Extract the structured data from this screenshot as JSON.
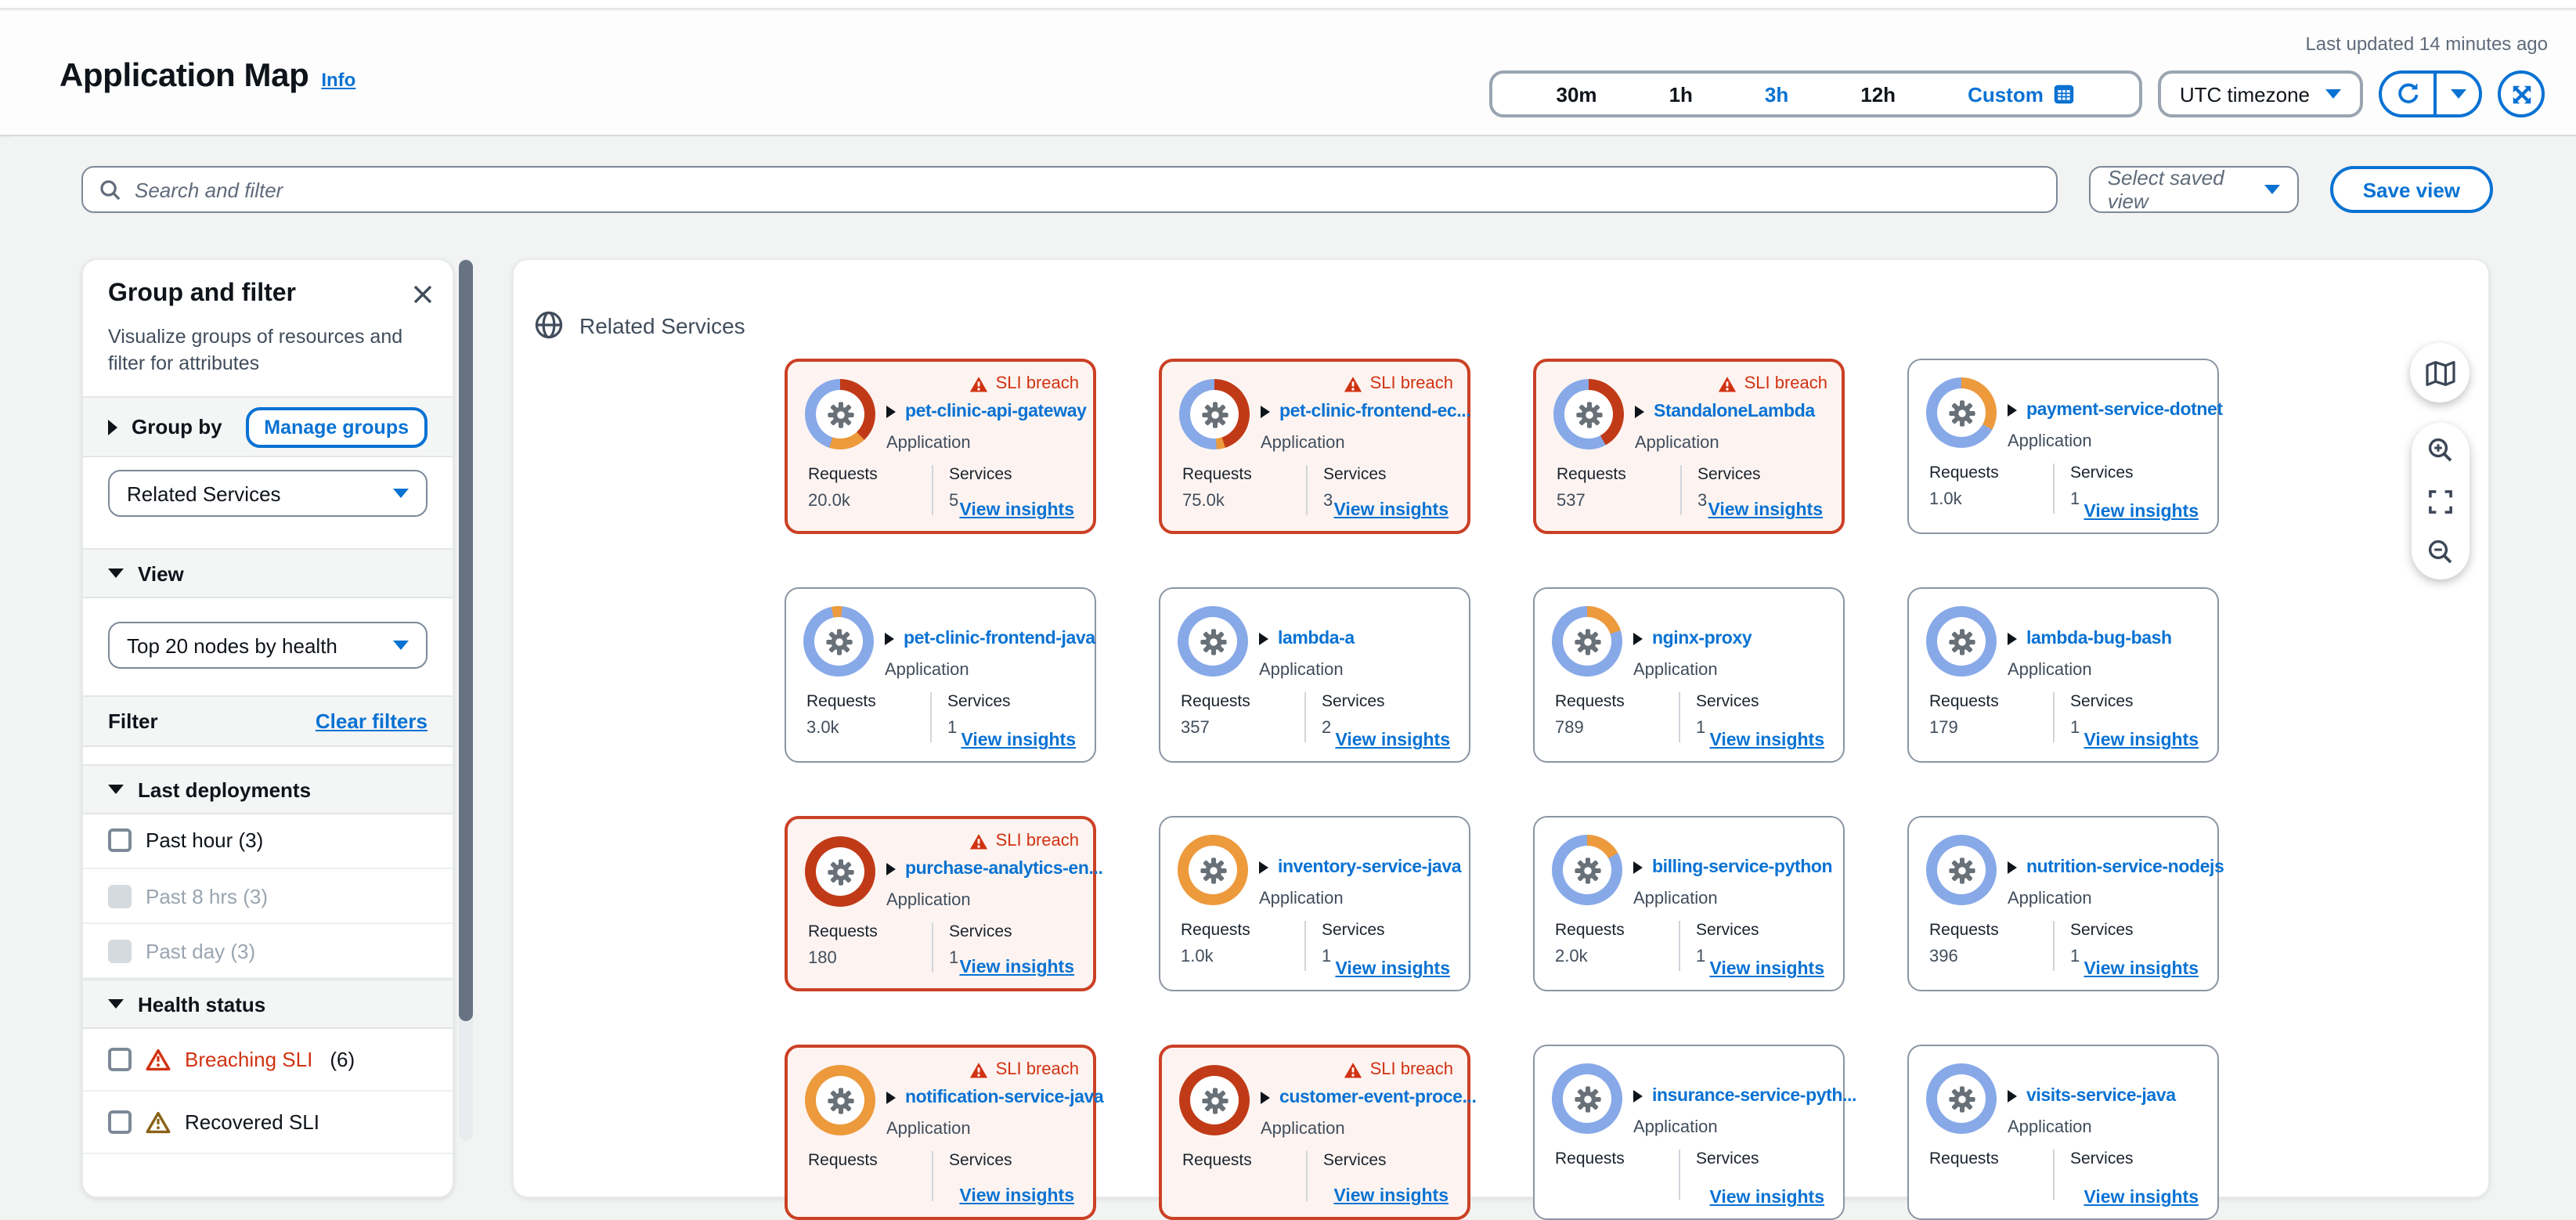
{
  "header": {
    "last_updated": "Last updated 14 minutes ago",
    "title": "Application Map",
    "info_label": "Info",
    "time_ranges": [
      "30m",
      "1h",
      "3h",
      "12h"
    ],
    "selected_range": "3h",
    "custom_label": "Custom",
    "timezone_label": "UTC timezone"
  },
  "search": {
    "placeholder": "Search and filter",
    "saved_view_label": "Select saved view",
    "save_view_label": "Save view"
  },
  "sidebar": {
    "title": "Group and filter",
    "description": "Visualize groups of resources and filter for attributes",
    "group_by_label": "Group by",
    "manage_groups_label": "Manage groups",
    "group_by_value": "Related Services",
    "view_label": "View",
    "view_value": "Top 20 nodes by health",
    "filter_label": "Filter",
    "clear_filters_label": "Clear filters",
    "last_deployments_label": "Last deployments",
    "deployment_filters": [
      {
        "label": "Past hour (3)",
        "disabled": false
      },
      {
        "label": "Past 8 hrs (3)",
        "disabled": true
      },
      {
        "label": "Past day (3)",
        "disabled": true
      }
    ],
    "health_status_label": "Health status",
    "health_filters": [
      {
        "label": "Breaching SLI",
        "count": "(6)",
        "severity": "breaching"
      },
      {
        "label": "Recovered SLI",
        "count": "",
        "severity": "recovered"
      }
    ]
  },
  "map": {
    "group_title": "Related Services",
    "requests_label": "Requests",
    "services_label": "Services",
    "view_insights_label": "View insights",
    "sli_breach_label": "SLI breach",
    "cards": [
      {
        "name": "pet-clinic-api-gateway",
        "type": "Application",
        "requests": "20.0k",
        "services": "5",
        "breach": true,
        "ring": {
          "from": 0,
          "segments": [
            [
              "red",
              38
            ],
            [
              "orange",
              17
            ],
            [
              "blue",
              45
            ]
          ]
        }
      },
      {
        "name": "pet-clinic-frontend-ec...",
        "type": "Application",
        "requests": "75.0k",
        "services": "3",
        "breach": true,
        "ring": {
          "from": 0,
          "segments": [
            [
              "red",
              45
            ],
            [
              "orange",
              4
            ],
            [
              "blue",
              51
            ]
          ]
        }
      },
      {
        "name": "StandaloneLambda",
        "type": "Application",
        "requests": "537",
        "services": "3",
        "breach": true,
        "ring": {
          "from": 0,
          "segments": [
            [
              "red",
              42
            ],
            [
              "blue",
              58
            ]
          ]
        }
      },
      {
        "name": "payment-service-dotnet",
        "type": "Application",
        "requests": "1.0k",
        "services": "1",
        "breach": false,
        "ring": {
          "from": 0,
          "segments": [
            [
              "orange",
              33
            ],
            [
              "blue",
              67
            ]
          ]
        }
      },
      {
        "name": "pet-clinic-frontend-java",
        "type": "Application",
        "requests": "3.0k",
        "services": "1",
        "breach": false,
        "ring": {
          "from": -12,
          "segments": [
            [
              "orange",
              5
            ],
            [
              "blue",
              95
            ]
          ]
        }
      },
      {
        "name": "lambda-a",
        "type": "Application",
        "requests": "357",
        "services": "2",
        "breach": false,
        "ring": {
          "from": 0,
          "segments": [
            [
              "blue",
              100
            ]
          ]
        }
      },
      {
        "name": "nginx-proxy",
        "type": "Application",
        "requests": "789",
        "services": "1",
        "breach": false,
        "ring": {
          "from": 0,
          "segments": [
            [
              "orange",
              20
            ],
            [
              "blue",
              80
            ]
          ]
        }
      },
      {
        "name": "lambda-bug-bash",
        "type": "Application",
        "requests": "179",
        "services": "1",
        "breach": false,
        "ring": {
          "from": 0,
          "segments": [
            [
              "blue",
              100
            ]
          ]
        }
      },
      {
        "name": "purchase-analytics-en...",
        "type": "Application",
        "requests": "180",
        "services": "1",
        "breach": true,
        "ring": {
          "from": 0,
          "segments": [
            [
              "red",
              100
            ]
          ]
        }
      },
      {
        "name": "inventory-service-java",
        "type": "Application",
        "requests": "1.0k",
        "services": "1",
        "breach": false,
        "ring": {
          "from": 0,
          "segments": [
            [
              "orange",
              100
            ]
          ]
        }
      },
      {
        "name": "billing-service-python",
        "type": "Application",
        "requests": "2.0k",
        "services": "1",
        "breach": false,
        "ring": {
          "from": 0,
          "segments": [
            [
              "orange",
              17
            ],
            [
              "blue",
              83
            ]
          ]
        }
      },
      {
        "name": "nutrition-service-nodejs",
        "type": "Application",
        "requests": "396",
        "services": "1",
        "breach": false,
        "ring": {
          "from": 0,
          "segments": [
            [
              "blue",
              100
            ]
          ]
        }
      },
      {
        "name": "notification-service-java",
        "type": "Application",
        "requests": "",
        "services": "",
        "breach": true,
        "ring": {
          "from": 0,
          "segments": [
            [
              "orange",
              100
            ]
          ]
        }
      },
      {
        "name": "customer-event-proce...",
        "type": "Application",
        "requests": "",
        "services": "",
        "breach": true,
        "ring": {
          "from": 0,
          "segments": [
            [
              "red",
              100
            ]
          ]
        }
      },
      {
        "name": "insurance-service-pyth...",
        "type": "Application",
        "requests": "",
        "services": "",
        "breach": false,
        "ring": {
          "from": 0,
          "segments": [
            [
              "blue",
              100
            ]
          ]
        }
      },
      {
        "name": "visits-service-java",
        "type": "Application",
        "requests": "",
        "services": "",
        "breach": false,
        "ring": {
          "from": 0,
          "segments": [
            [
              "blue",
              100
            ]
          ]
        }
      }
    ]
  },
  "colors": {
    "accent_blue": "#0972d3",
    "breach_red": "#d13212",
    "recovered_yellow": "#8a6116",
    "ring_blue": "#88a9e8",
    "ring_orange": "#ec9a3c",
    "ring_red": "#c13a17",
    "gear_gray": "#687078"
  }
}
